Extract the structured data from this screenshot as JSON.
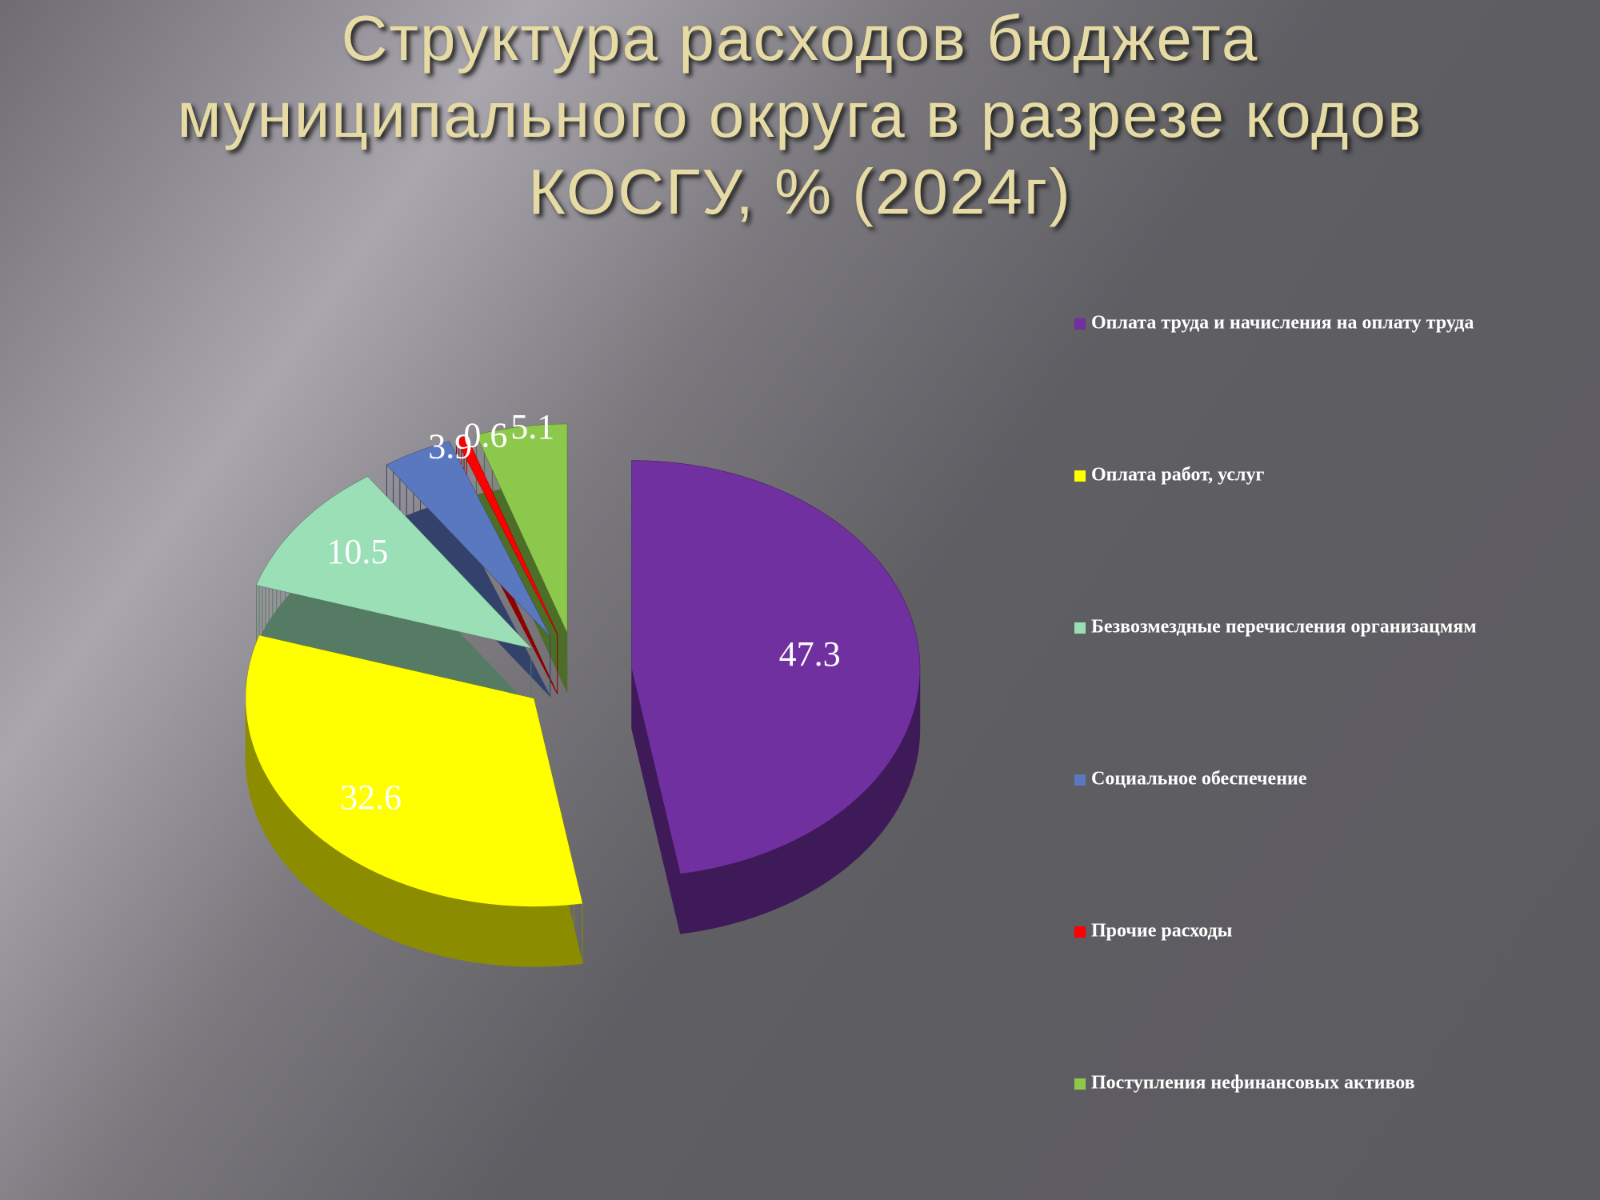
{
  "chart_data": {
    "type": "pie3d",
    "title": "Структура расходов бюджета\nмуниципального округа в разрезе  кодов\nКОСГУ, % (2024г)",
    "categories": [
      "Оплата труда и начисления на оплату труда",
      "Оплата работ, услуг",
      "Безвозмездные перечисления организацмям",
      "Социальное обеспечение",
      "Прочие расходы",
      "Поступления нефинансовых активов"
    ],
    "values": [
      47.3,
      32.6,
      10.5,
      3.9,
      0.6,
      5.1
    ],
    "colors": [
      "#7030a0",
      "#ffff00",
      "#9bdfb6",
      "#5a78c0",
      "#ff0000",
      "#8cc84b"
    ],
    "legend": "right"
  }
}
